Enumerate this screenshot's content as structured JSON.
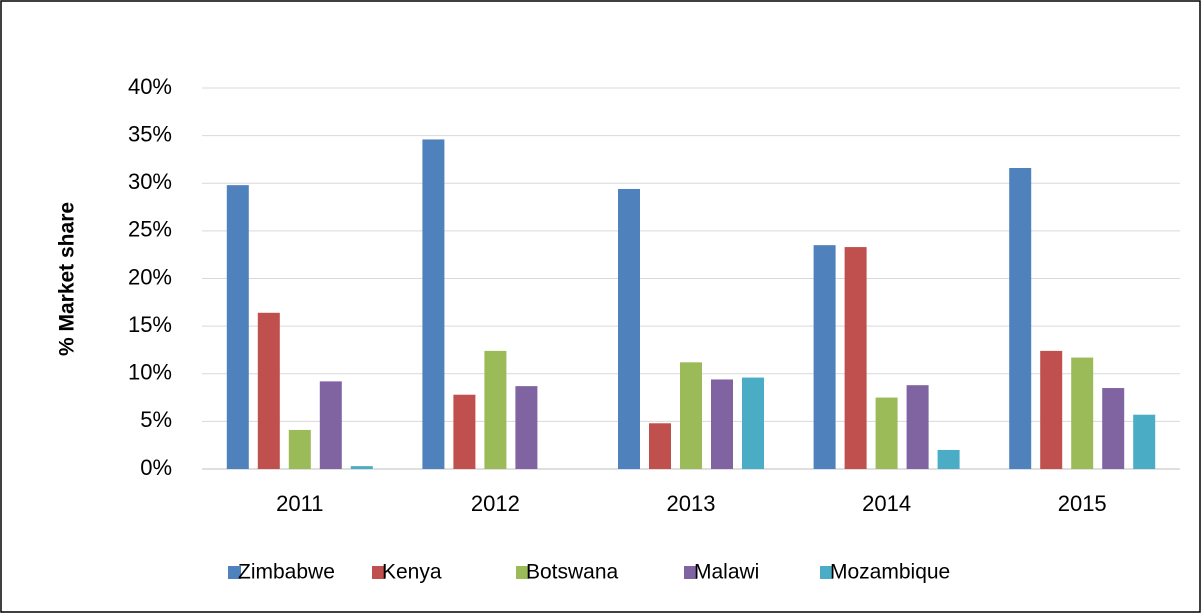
{
  "chart_data": {
    "type": "bar",
    "y_label": "% Market share",
    "categories": [
      "2011",
      "2012",
      "2013",
      "2014",
      "2015"
    ],
    "series": [
      {
        "name": "Zimbabwe",
        "color": "#4f81bd",
        "values": [
          29.8,
          34.6,
          29.4,
          23.5,
          31.6
        ]
      },
      {
        "name": "Kenya",
        "color": "#c0504d",
        "values": [
          16.4,
          7.8,
          4.8,
          23.3,
          12.4
        ]
      },
      {
        "name": "Botswana",
        "color": "#9bbb59",
        "values": [
          4.1,
          12.4,
          11.2,
          7.5,
          11.7
        ]
      },
      {
        "name": "Malawi",
        "color": "#8064a2",
        "values": [
          9.2,
          8.7,
          9.4,
          8.8,
          8.5
        ]
      },
      {
        "name": "Mozambique",
        "color": "#4bacc6",
        "values": [
          0.3,
          0,
          9.6,
          2.0,
          5.7
        ]
      }
    ],
    "ylim": [
      0,
      40
    ],
    "yticks": [
      {
        "value": 0,
        "label": "0%"
      },
      {
        "value": 5,
        "label": "5%"
      },
      {
        "value": 10,
        "label": "10%"
      },
      {
        "value": 15,
        "label": "15%"
      },
      {
        "value": 20,
        "label": "20%"
      },
      {
        "value": 25,
        "label": "25%"
      },
      {
        "value": 30,
        "label": "30%"
      },
      {
        "value": 35,
        "label": "35%"
      },
      {
        "value": 40,
        "label": "40%"
      }
    ],
    "grid": true,
    "legend": "bottom"
  }
}
